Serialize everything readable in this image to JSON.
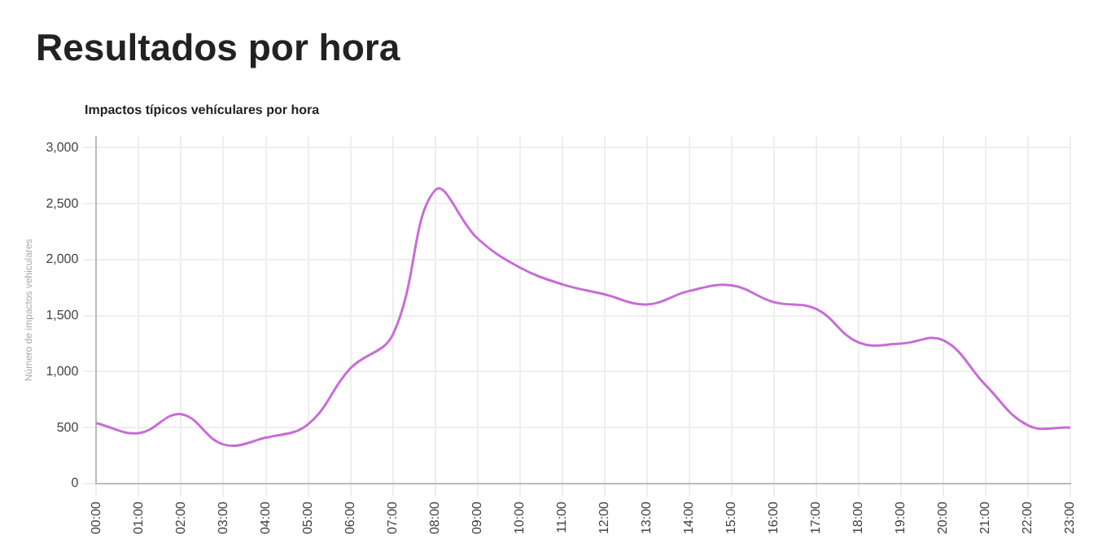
{
  "chart_data": {
    "type": "line",
    "title": "Resultados por hora",
    "subtitle": "Impactos típicos vehículares por hora",
    "ylabel": "Número de impactos vehiculares",
    "categories": [
      "00:00",
      "01:00",
      "02:00",
      "03:00",
      "04:00",
      "05:00",
      "06:00",
      "07:00",
      "08:00",
      "09:00",
      "10:00",
      "11:00",
      "12:00",
      "13:00",
      "14:00",
      "15:00",
      "16:00",
      "17:00",
      "18:00",
      "19:00",
      "20:00",
      "21:00",
      "22:00",
      "23:00"
    ],
    "series": [
      {
        "color": "#c86dd7",
        "values": [
          540,
          450,
          620,
          350,
          410,
          530,
          1030,
          1330,
          2620,
          2190,
          1930,
          1780,
          1690,
          1600,
          1720,
          1770,
          1620,
          1560,
          1260,
          1250,
          1280,
          880,
          520,
          500
        ]
      }
    ],
    "ylim": [
      0,
      3100
    ],
    "yticks": [
      {
        "value": 0,
        "label": "0"
      },
      {
        "value": 500,
        "label": "500"
      },
      {
        "value": 1000,
        "label": "1,000"
      },
      {
        "value": 1500,
        "label": "1,500"
      },
      {
        "value": 2000,
        "label": "2,000"
      },
      {
        "value": 2500,
        "label": "2,500"
      },
      {
        "value": 3000,
        "label": "3,000"
      }
    ],
    "grid": true,
    "marker": "none",
    "line_style": "solid"
  }
}
